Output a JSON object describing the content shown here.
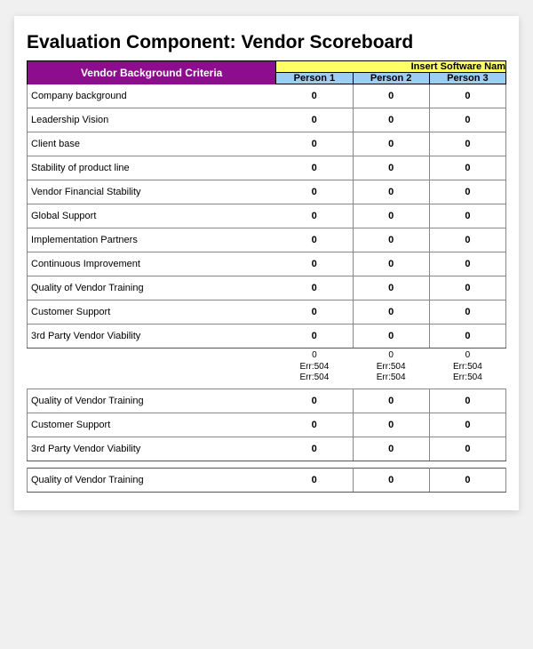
{
  "title": "Evaluation Component: Vendor Scoreboard",
  "header": {
    "criteria_label": "Vendor Background Criteria",
    "software_label": "Insert Software Nam",
    "persons": [
      "Person 1",
      "Person 2",
      "Person 3"
    ]
  },
  "colors": {
    "purple": "#8e0d8e",
    "yellow": "#ffff66",
    "blue": "#9ecdf2",
    "background": "#f0f0f0",
    "card": "#ffffff"
  },
  "section1": {
    "rows": [
      {
        "label": "Company background",
        "vals": [
          "0",
          "0",
          "0"
        ]
      },
      {
        "label": "Leadership Vision",
        "vals": [
          "0",
          "0",
          "0"
        ]
      },
      {
        "label": "Client base",
        "vals": [
          "0",
          "0",
          "0"
        ]
      },
      {
        "label": "Stability of product line",
        "vals": [
          "0",
          "0",
          "0"
        ]
      },
      {
        "label": "Vendor Financial Stability",
        "vals": [
          "0",
          "0",
          "0"
        ]
      },
      {
        "label": "Global Support",
        "vals": [
          "0",
          "0",
          "0"
        ]
      },
      {
        "label": "Implementation Partners",
        "vals": [
          "0",
          "0",
          "0"
        ]
      },
      {
        "label": "Continuous Improvement",
        "vals": [
          "0",
          "0",
          "0"
        ]
      },
      {
        "label": "Quality of Vendor Training",
        "vals": [
          "0",
          "0",
          "0"
        ]
      },
      {
        "label": "Customer Support",
        "vals": [
          "0",
          "0",
          "0"
        ]
      },
      {
        "label": "3rd Party Vendor Viability",
        "vals": [
          "0",
          "0",
          "0"
        ]
      }
    ]
  },
  "summary": {
    "line1": [
      "0",
      "0",
      "0"
    ],
    "line2": [
      "Err:504",
      "Err:504",
      "Err:504"
    ],
    "line3": [
      "Err:504",
      "Err:504",
      "Err:504"
    ]
  },
  "section2": {
    "rows": [
      {
        "label": "Quality of Vendor Training",
        "vals": [
          "0",
          "0",
          "0"
        ]
      },
      {
        "label": "Customer Support",
        "vals": [
          "0",
          "0",
          "0"
        ]
      },
      {
        "label": "3rd Party Vendor Viability",
        "vals": [
          "0",
          "0",
          "0"
        ]
      }
    ]
  },
  "section3": {
    "rows": [
      {
        "label": "Quality of Vendor Training",
        "vals": [
          "0",
          "0",
          "0"
        ]
      }
    ]
  }
}
